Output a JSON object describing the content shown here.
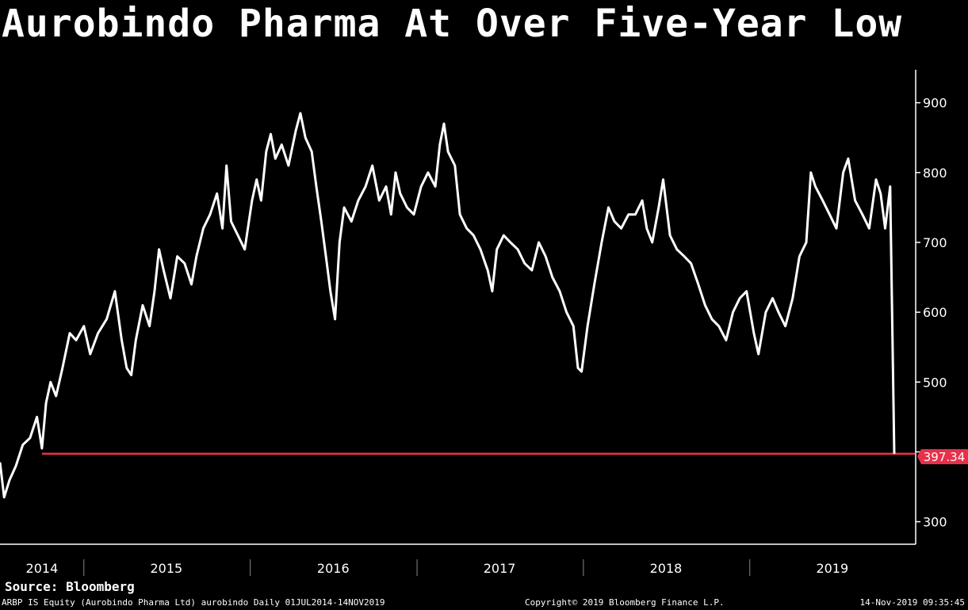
{
  "header": {
    "title": "Aurobindo Pharma At Over Five-Year Low"
  },
  "footer": {
    "source": "Source: Bloomberg",
    "description": "ARBP IS Equity (Aurobindo Pharma Ltd) aurobindo  Daily 01JUL2014-14NOV2019",
    "copyright": "Copyright© 2019 Bloomberg Finance L.P.",
    "timestamp": "14-Nov-2019 09:35:45"
  },
  "colors": {
    "background": "#000000",
    "line": "#ffffff",
    "reference": "#e8304a",
    "axis": "#ffffff"
  },
  "chart_data": {
    "type": "line",
    "title": "Aurobindo Pharma At Over Five-Year Low",
    "xlabel": "",
    "ylabel": "",
    "x_range": [
      "2014-07-01",
      "2019-11-14"
    ],
    "ylim": [
      270,
      945
    ],
    "y_ticks": [
      300,
      400,
      500,
      600,
      700,
      800,
      900
    ],
    "y_tick_labels": [
      "300",
      "",
      "500",
      "600",
      "700",
      "800",
      "900"
    ],
    "x_tick_labels": [
      "2014",
      "2015",
      "2016",
      "2017",
      "2018",
      "2019"
    ],
    "x_tick_positions": [
      "2014-10-01",
      "2015-07-01",
      "2016-07-01",
      "2017-07-01",
      "2018-07-01",
      "2019-07-01"
    ],
    "grid": false,
    "legend": "none",
    "last_value": 397.34,
    "last_value_label": "397.34",
    "reference_line": {
      "value": 397.34,
      "start": "2014-10-01",
      "end": "2019-11-14"
    },
    "series": [
      {
        "values": [
          [
            "2014-07-01",
            385
          ],
          [
            "2014-07-10",
            335
          ],
          [
            "2014-07-22",
            360
          ],
          [
            "2014-08-05",
            380
          ],
          [
            "2014-08-20",
            410
          ],
          [
            "2014-09-05",
            420
          ],
          [
            "2014-09-20",
            450
          ],
          [
            "2014-10-01",
            405
          ],
          [
            "2014-10-10",
            470
          ],
          [
            "2014-10-20",
            500
          ],
          [
            "2014-11-01",
            480
          ],
          [
            "2014-11-15",
            520
          ],
          [
            "2014-12-01",
            570
          ],
          [
            "2014-12-15",
            560
          ],
          [
            "2015-01-01",
            580
          ],
          [
            "2015-01-15",
            540
          ],
          [
            "2015-02-01",
            570
          ],
          [
            "2015-02-20",
            590
          ],
          [
            "2015-03-10",
            630
          ],
          [
            "2015-03-25",
            560
          ],
          [
            "2015-04-05",
            520
          ],
          [
            "2015-04-15",
            510
          ],
          [
            "2015-04-25",
            560
          ],
          [
            "2015-05-10",
            610
          ],
          [
            "2015-05-25",
            580
          ],
          [
            "2015-06-05",
            630
          ],
          [
            "2015-06-15",
            690
          ],
          [
            "2015-06-25",
            660
          ],
          [
            "2015-07-10",
            620
          ],
          [
            "2015-07-25",
            680
          ],
          [
            "2015-08-10",
            670
          ],
          [
            "2015-08-25",
            640
          ],
          [
            "2015-09-05",
            680
          ],
          [
            "2015-09-20",
            720
          ],
          [
            "2015-10-05",
            740
          ],
          [
            "2015-10-20",
            770
          ],
          [
            "2015-11-01",
            720
          ],
          [
            "2015-11-10",
            810
          ],
          [
            "2015-11-20",
            730
          ],
          [
            "2015-12-05",
            710
          ],
          [
            "2015-12-20",
            690
          ],
          [
            "2016-01-05",
            760
          ],
          [
            "2016-01-15",
            790
          ],
          [
            "2016-01-25",
            760
          ],
          [
            "2016-02-05",
            830
          ],
          [
            "2016-02-15",
            855
          ],
          [
            "2016-02-25",
            820
          ],
          [
            "2016-03-10",
            840
          ],
          [
            "2016-03-25",
            810
          ],
          [
            "2016-04-10",
            860
          ],
          [
            "2016-04-20",
            885
          ],
          [
            "2016-05-01",
            850
          ],
          [
            "2016-05-15",
            830
          ],
          [
            "2016-05-25",
            780
          ],
          [
            "2016-06-05",
            730
          ],
          [
            "2016-06-15",
            680
          ],
          [
            "2016-06-25",
            630
          ],
          [
            "2016-07-05",
            590
          ],
          [
            "2016-07-15",
            700
          ],
          [
            "2016-07-25",
            750
          ],
          [
            "2016-08-10",
            730
          ],
          [
            "2016-08-25",
            760
          ],
          [
            "2016-09-10",
            780
          ],
          [
            "2016-09-25",
            810
          ],
          [
            "2016-10-10",
            760
          ],
          [
            "2016-10-25",
            780
          ],
          [
            "2016-11-05",
            740
          ],
          [
            "2016-11-15",
            800
          ],
          [
            "2016-11-25",
            770
          ],
          [
            "2016-12-10",
            750
          ],
          [
            "2016-12-25",
            740
          ],
          [
            "2017-01-10",
            780
          ],
          [
            "2017-01-25",
            800
          ],
          [
            "2017-02-10",
            780
          ],
          [
            "2017-02-20",
            840
          ],
          [
            "2017-03-01",
            870
          ],
          [
            "2017-03-10",
            830
          ],
          [
            "2017-03-25",
            810
          ],
          [
            "2017-04-05",
            740
          ],
          [
            "2017-04-20",
            720
          ],
          [
            "2017-05-05",
            710
          ],
          [
            "2017-05-20",
            690
          ],
          [
            "2017-06-05",
            660
          ],
          [
            "2017-06-15",
            630
          ],
          [
            "2017-06-25",
            690
          ],
          [
            "2017-07-10",
            710
          ],
          [
            "2017-07-25",
            700
          ],
          [
            "2017-08-10",
            690
          ],
          [
            "2017-08-25",
            670
          ],
          [
            "2017-09-10",
            660
          ],
          [
            "2017-09-25",
            700
          ],
          [
            "2017-10-10",
            680
          ],
          [
            "2017-10-25",
            650
          ],
          [
            "2017-11-10",
            630
          ],
          [
            "2017-11-25",
            600
          ],
          [
            "2017-12-10",
            580
          ],
          [
            "2017-12-20",
            520
          ],
          [
            "2017-12-28",
            515
          ],
          [
            "2018-01-10",
            580
          ],
          [
            "2018-01-25",
            640
          ],
          [
            "2018-02-10",
            700
          ],
          [
            "2018-02-25",
            750
          ],
          [
            "2018-03-10",
            730
          ],
          [
            "2018-03-25",
            720
          ],
          [
            "2018-04-10",
            740
          ],
          [
            "2018-04-25",
            740
          ],
          [
            "2018-05-10",
            760
          ],
          [
            "2018-05-20",
            720
          ],
          [
            "2018-06-01",
            700
          ],
          [
            "2018-06-15",
            750
          ],
          [
            "2018-06-25",
            790
          ],
          [
            "2018-07-10",
            710
          ],
          [
            "2018-07-25",
            690
          ],
          [
            "2018-08-10",
            680
          ],
          [
            "2018-08-25",
            670
          ],
          [
            "2018-09-10",
            640
          ],
          [
            "2018-09-25",
            610
          ],
          [
            "2018-10-10",
            590
          ],
          [
            "2018-10-25",
            580
          ],
          [
            "2018-11-10",
            560
          ],
          [
            "2018-11-25",
            600
          ],
          [
            "2018-12-10",
            620
          ],
          [
            "2018-12-25",
            630
          ],
          [
            "2019-01-10",
            570
          ],
          [
            "2019-01-20",
            540
          ],
          [
            "2019-02-05",
            600
          ],
          [
            "2019-02-20",
            620
          ],
          [
            "2019-03-05",
            600
          ],
          [
            "2019-03-20",
            580
          ],
          [
            "2019-04-05",
            620
          ],
          [
            "2019-04-20",
            680
          ],
          [
            "2019-05-05",
            700
          ],
          [
            "2019-05-15",
            800
          ],
          [
            "2019-05-25",
            780
          ],
          [
            "2019-06-10",
            760
          ],
          [
            "2019-06-25",
            740
          ],
          [
            "2019-07-10",
            720
          ],
          [
            "2019-07-25",
            800
          ],
          [
            "2019-08-05",
            820
          ],
          [
            "2019-08-20",
            760
          ],
          [
            "2019-09-05",
            740
          ],
          [
            "2019-09-20",
            720
          ],
          [
            "2019-10-05",
            790
          ],
          [
            "2019-10-15",
            770
          ],
          [
            "2019-10-25",
            720
          ],
          [
            "2019-11-05",
            780
          ],
          [
            "2019-11-14",
            397.34
          ]
        ]
      }
    ]
  }
}
